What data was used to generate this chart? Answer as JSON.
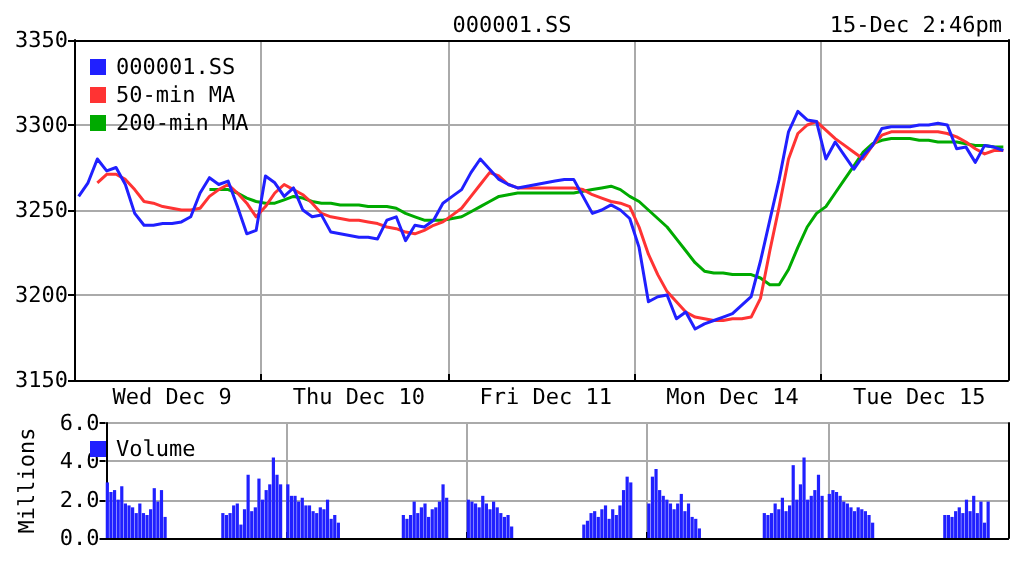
{
  "chart_data": [
    {
      "type": "line",
      "title": "000001.SS",
      "subtitle": "15-Dec 2:46pm",
      "ylim": [
        3150,
        3350
      ],
      "yticks": [
        3150,
        3200,
        3250,
        3300,
        3350
      ],
      "categories": [
        null,
        null,
        null,
        null,
        null,
        null,
        null,
        null,
        null,
        null,
        "Wed Dec 9",
        null,
        null,
        null,
        null,
        null,
        null,
        null,
        null,
        null,
        null,
        null,
        null,
        null,
        null,
        null,
        null,
        null,
        null,
        null,
        "Thu Dec 10",
        null,
        null,
        null,
        null,
        null,
        null,
        null,
        null,
        null,
        null,
        null,
        null,
        null,
        null,
        null,
        null,
        null,
        null,
        null,
        "Fri Dec 11",
        null,
        null,
        null,
        null,
        null,
        null,
        null,
        null,
        null,
        null,
        null,
        null,
        null,
        null,
        null,
        null,
        null,
        null,
        null,
        "Mon Dec 14",
        null,
        null,
        null,
        null,
        null,
        null,
        null,
        null,
        null,
        null,
        null,
        null,
        null,
        null,
        null,
        null,
        null,
        null,
        null,
        "Tue Dec 15",
        null,
        null,
        null,
        null,
        null,
        null,
        null,
        null,
        null
      ],
      "grid": true,
      "legend": "top left",
      "series": [
        {
          "name": "000001.SS",
          "color": "#2020ff",
          "values": [
            3258,
            3266,
            3280,
            3273,
            3275,
            3265,
            3248,
            3241,
            3241,
            3242,
            3242,
            3243,
            3246,
            3260,
            3269,
            3265,
            3267,
            3252,
            3236,
            3238,
            3270,
            3266,
            3258,
            3263,
            3250,
            3246,
            3247,
            3237,
            3236,
            3235,
            3234,
            3234,
            3233,
            3244,
            3246,
            3232,
            3241,
            3240,
            3244,
            3254,
            3258,
            3262,
            3272,
            3280,
            3274,
            3268,
            3265,
            3263,
            3264,
            3265,
            3266,
            3267,
            3268,
            3268,
            3258,
            3248,
            3250,
            3253,
            3250,
            3245,
            3228,
            3196,
            3199,
            3200,
            3186,
            3190,
            3180,
            3183,
            3185,
            3187,
            3189,
            3194,
            3199,
            3220,
            3244,
            3268,
            3296,
            3308,
            3303,
            3302,
            3280,
            3290,
            3282,
            3274,
            3282,
            3288,
            3298,
            3299,
            3299,
            3299,
            3300,
            3300,
            3301,
            3300,
            3286,
            3287,
            3278,
            3288,
            3287,
            3285
          ]
        },
        {
          "name": "50-min MA",
          "color": "#ff3333",
          "values": [
            null,
            null,
            3266,
            3271,
            3271,
            3268,
            3262,
            3255,
            3254,
            3252,
            3251,
            3250,
            3250,
            3251,
            3258,
            3262,
            3265,
            3260,
            3254,
            3246,
            3252,
            3260,
            3265,
            3262,
            3259,
            3254,
            3248,
            3246,
            3245,
            3244,
            3244,
            3243,
            3242,
            3240,
            3239,
            3237,
            3236,
            3238,
            3241,
            3243,
            3247,
            3251,
            3258,
            3265,
            3272,
            3270,
            3265,
            3263,
            3263,
            3263,
            3263,
            3263,
            3263,
            3263,
            3262,
            3259,
            3257,
            3255,
            3254,
            3252,
            3240,
            3224,
            3212,
            3202,
            3196,
            3190,
            3187,
            3186,
            3185,
            3185,
            3186,
            3186,
            3187,
            3198,
            3226,
            3252,
            3280,
            3295,
            3300,
            3302,
            3297,
            3292,
            3288,
            3284,
            3280,
            3288,
            3294,
            3296,
            3296,
            3296,
            3296,
            3296,
            3296,
            3295,
            3293,
            3290,
            3286,
            3283,
            3285,
            3285
          ]
        },
        {
          "name": "200-min MA",
          "color": "#00aa00",
          "values": [
            null,
            null,
            null,
            null,
            null,
            null,
            null,
            null,
            null,
            null,
            null,
            null,
            null,
            null,
            3262,
            3262,
            3262,
            3260,
            3257,
            3255,
            3254,
            3254,
            3256,
            3258,
            3257,
            3255,
            3254,
            3254,
            3253,
            3253,
            3253,
            3252,
            3252,
            3252,
            3251,
            3248,
            3246,
            3244,
            3244,
            3244,
            3245,
            3246,
            3249,
            3252,
            3255,
            3258,
            3259,
            3260,
            3260,
            3260,
            3260,
            3260,
            3260,
            3260,
            3261,
            3262,
            3263,
            3264,
            3262,
            3258,
            3255,
            3250,
            3245,
            3240,
            3233,
            3226,
            3219,
            3214,
            3213,
            3213,
            3212,
            3212,
            3212,
            3210,
            3206,
            3206,
            3215,
            3228,
            3240,
            3248,
            3252,
            3260,
            3268,
            3276,
            3284,
            3289,
            3291,
            3292,
            3292,
            3292,
            3291,
            3291,
            3290,
            3290,
            3290,
            3289,
            3288,
            3288,
            3287,
            3287
          ]
        }
      ]
    },
    {
      "type": "bar",
      "ylabel": "Millions",
      "ylim": [
        0,
        6
      ],
      "yticks": [
        {
          "value": 0,
          "label": "0.0"
        },
        {
          "value": 2,
          "label": "2.0"
        },
        {
          "value": 4,
          "label": "4.0"
        },
        {
          "value": 6,
          "label": "6.0"
        }
      ],
      "categories": [
        null,
        null,
        null,
        null,
        null,
        null,
        null,
        null,
        null,
        null,
        null,
        null,
        null,
        null,
        null,
        null,
        null,
        null,
        null,
        null,
        null,
        null,
        null,
        null,
        null,
        null,
        null,
        null,
        null,
        null,
        null,
        null,
        null,
        null,
        null,
        null,
        null,
        null,
        null,
        null,
        null,
        null,
        null,
        null,
        null,
        null,
        null,
        null,
        null,
        null,
        null,
        null,
        null,
        null,
        null,
        null,
        null,
        null,
        null,
        null,
        null,
        null,
        null,
        null,
        null,
        null,
        null,
        null,
        null,
        null,
        null,
        null,
        null,
        null,
        null,
        null,
        null,
        null,
        null,
        null,
        null,
        null,
        null,
        null,
        null,
        null,
        null,
        null,
        null,
        null,
        null,
        null,
        null,
        null,
        null,
        null,
        null,
        null,
        null,
        null,
        null,
        null,
        null,
        null,
        null,
        null,
        null,
        null,
        null,
        null,
        null,
        null,
        null,
        null,
        null,
        null,
        null,
        null,
        null,
        null,
        null,
        null,
        null,
        null,
        null,
        null,
        null,
        null,
        null,
        null,
        null,
        null,
        null,
        null,
        null,
        null,
        null,
        null,
        null,
        null,
        null,
        null,
        null,
        null,
        null,
        null,
        null,
        null,
        null,
        null,
        null,
        null,
        null,
        null,
        null,
        null,
        null,
        null,
        null,
        null,
        null,
        null,
        null,
        null,
        null,
        null,
        null,
        null,
        null,
        null,
        null,
        null,
        null,
        null,
        null,
        null,
        null,
        null,
        null,
        null,
        null,
        null,
        null,
        null,
        null,
        null,
        null,
        null,
        null,
        null,
        null,
        null,
        null,
        null,
        null,
        null,
        null,
        null,
        null,
        null,
        null,
        null,
        null,
        null,
        null,
        null,
        null,
        null,
        null,
        null,
        null,
        null,
        null,
        null,
        null,
        null,
        null,
        null,
        null,
        null,
        null,
        null,
        null,
        null,
        null,
        null,
        null,
        null,
        null,
        null,
        null,
        null,
        null,
        null,
        null,
        null,
        null,
        null,
        null,
        null,
        null,
        null,
        null,
        null,
        null,
        null,
        null,
        null,
        null,
        null
      ],
      "tick_labels": "y",
      "grid": true,
      "legend": "top left",
      "series": [
        {
          "name": "Volume",
          "color": "#2020ff",
          "values": [
            2.9,
            2.4,
            2.5,
            2.0,
            2.7,
            1.8,
            1.7,
            1.6,
            1.3,
            1.8,
            1.3,
            1.2,
            1.5,
            2.6,
            1.9,
            2.5,
            1.1,
            null,
            null,
            null,
            null,
            null,
            null,
            null,
            null,
            null,
            null,
            null,
            null,
            null,
            null,
            null,
            1.3,
            1.2,
            1.3,
            1.7,
            1.8,
            0.7,
            1.5,
            3.3,
            1.4,
            1.6,
            3.1,
            2.0,
            2.5,
            2.8,
            4.2,
            3.3,
            2.8,
            null,
            2.8,
            2.2,
            2.2,
            1.9,
            2.1,
            1.7,
            1.7,
            1.4,
            1.3,
            1.6,
            1.5,
            2.0,
            1.0,
            1.2,
            0.8,
            null,
            null,
            null,
            null,
            null,
            null,
            null,
            null,
            null,
            null,
            null,
            null,
            null,
            null,
            null,
            null,
            null,
            1.2,
            1.0,
            1.2,
            1.9,
            1.3,
            1.6,
            1.8,
            1.1,
            1.5,
            1.6,
            1.9,
            2.8,
            2.1,
            null,
            null,
            null,
            null,
            null,
            2.0,
            1.9,
            1.8,
            1.6,
            2.2,
            1.8,
            1.5,
            1.9,
            1.6,
            1.3,
            1.1,
            1.2,
            0.6,
            null,
            null,
            null,
            null,
            null,
            null,
            null,
            null,
            null,
            null,
            null,
            null,
            null,
            null,
            null,
            null,
            null,
            null,
            null,
            0.7,
            0.9,
            1.3,
            1.4,
            1.1,
            1.5,
            1.7,
            1.0,
            1.5,
            1.2,
            1.7,
            2.5,
            3.2,
            2.9,
            null,
            null,
            null,
            null,
            1.8,
            3.2,
            3.6,
            2.5,
            2.2,
            2.0,
            1.8,
            1.5,
            1.8,
            2.3,
            1.4,
            1.8,
            1.1,
            1.0,
            0.5,
            null,
            null,
            null,
            null,
            null,
            null,
            null,
            null,
            null,
            null,
            null,
            null,
            null,
            null,
            null,
            null,
            null,
            1.3,
            1.2,
            1.3,
            1.8,
            1.5,
            2.1,
            1.4,
            1.7,
            3.8,
            2.0,
            2.8,
            4.2,
            2.0,
            2.2,
            2.5,
            3.3,
            2.2,
            null,
            2.3,
            2.5,
            2.4,
            2.2,
            1.9,
            1.8,
            1.6,
            1.4,
            1.6,
            1.5,
            1.4,
            1.2,
            0.8,
            null,
            null,
            null,
            null,
            null,
            null,
            null,
            null,
            null,
            null,
            null,
            null,
            null,
            null,
            null,
            null,
            null,
            null,
            null,
            1.2,
            1.2,
            1.1,
            1.4,
            1.6,
            1.3,
            2.0,
            1.4,
            2.2,
            1.3,
            1.9,
            0.8,
            1.9,
            null,
            null,
            null,
            null,
            null
          ]
        }
      ]
    }
  ]
}
